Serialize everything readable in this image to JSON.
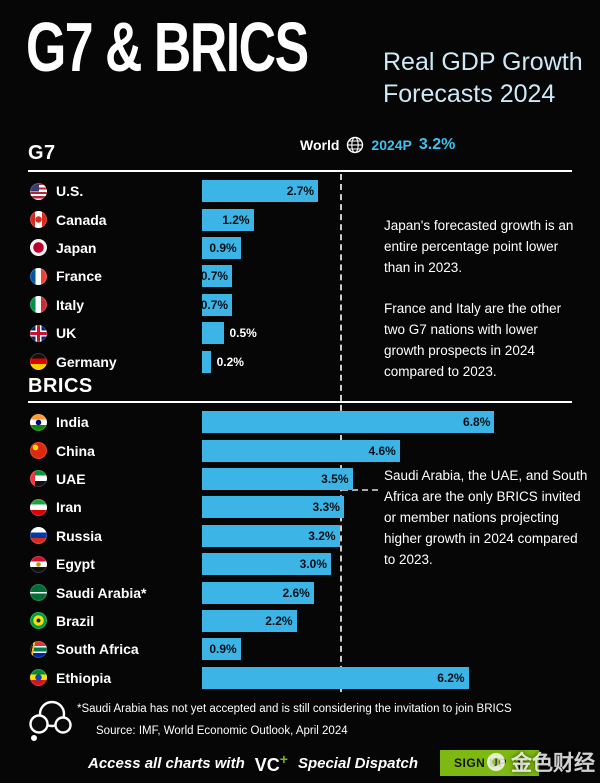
{
  "poster": {
    "title": "G7 & BRICS",
    "subtitle": [
      "Real GDP Growth",
      "Forecasts 2024"
    ]
  },
  "world": {
    "label": "World",
    "marker": "2024P",
    "value_label": "3.2%"
  },
  "sections": {
    "g7_label": "G7",
    "brics_label": "BRICS"
  },
  "chart_data": {
    "type": "bar",
    "orientation": "horizontal",
    "title": "G7 & BRICS Real GDP Growth Forecasts 2024",
    "value_unit": "%",
    "world_average": 3.2,
    "xlim": [
      0,
      7
    ],
    "grid": false,
    "groups": [
      {
        "name": "G7",
        "rows": [
          {
            "country": "U.S.",
            "flag": "us",
            "value": 2.7,
            "label": "2.7%"
          },
          {
            "country": "Canada",
            "flag": "canada",
            "value": 1.2,
            "label": "1.2%"
          },
          {
            "country": "Japan",
            "flag": "japan",
            "value": 0.9,
            "label": "0.9%"
          },
          {
            "country": "France",
            "flag": "france",
            "value": 0.7,
            "label": "0.7%"
          },
          {
            "country": "Italy",
            "flag": "italy",
            "value": 0.7,
            "label": "0.7%"
          },
          {
            "country": "UK",
            "flag": "uk",
            "value": 0.5,
            "label": "0.5%"
          },
          {
            "country": "Germany",
            "flag": "germany",
            "value": 0.2,
            "label": "0.2%"
          }
        ]
      },
      {
        "name": "BRICS",
        "rows": [
          {
            "country": "India",
            "flag": "india",
            "value": 6.8,
            "label": "6.8%"
          },
          {
            "country": "China",
            "flag": "china",
            "value": 4.6,
            "label": "4.6%"
          },
          {
            "country": "UAE",
            "flag": "uae",
            "value": 3.5,
            "label": "3.5%"
          },
          {
            "country": "Iran",
            "flag": "iran",
            "value": 3.3,
            "label": "3.3%"
          },
          {
            "country": "Russia",
            "flag": "russia",
            "value": 3.2,
            "label": "3.2%"
          },
          {
            "country": "Egypt",
            "flag": "egypt",
            "value": 3.0,
            "label": "3.0%"
          },
          {
            "country": "Saudi Arabia*",
            "flag": "saudi",
            "value": 2.6,
            "label": "2.6%"
          },
          {
            "country": "Brazil",
            "flag": "brazil",
            "value": 2.2,
            "label": "2.2%"
          },
          {
            "country": "South Africa",
            "flag": "southafrica",
            "value": 0.9,
            "label": "0.9%"
          },
          {
            "country": "Ethiopia",
            "flag": "ethiopia",
            "value": 6.2,
            "label": "6.2%"
          }
        ]
      }
    ]
  },
  "annotations": {
    "g7_para1": "Japan's forecasted growth is an entire percentage point lower than in 2023.",
    "g7_para2": "France and Italy are the other two G7 nations with lower growth prospects in 2024 compared to 2023.",
    "brics_para": "Saudi Arabia, the UAE, and South Africa are the only BRICS invited or member nations projecting higher growth in 2024 compared to 2023."
  },
  "footnotes": {
    "asterisk_note": "*Saudi Arabia has not yet accepted and is still considering the invitation to join BRICS",
    "source": "Source: IMF, World Economic Outlook, April 2024"
  },
  "footer": {
    "access_text": "Access all charts with",
    "brand_vc": "VC",
    "brand_plus": "+",
    "brand_suffix": "Special Dispatch",
    "signup_label": "SIGN UP"
  },
  "watermark": {
    "text": "金色财经"
  },
  "colors": {
    "bar": "#3cb4e5",
    "accent_cyan": "#3fc0ef",
    "signup_green": "#7eb812",
    "background": "#060606",
    "subtitle": "#cde9f6"
  }
}
